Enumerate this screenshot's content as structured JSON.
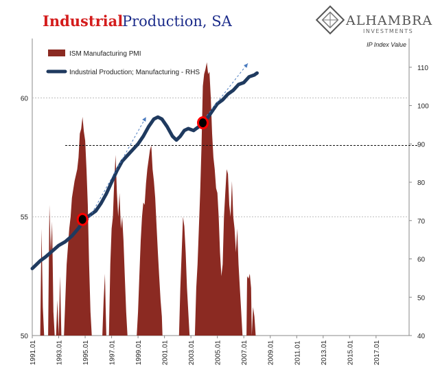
{
  "header": {
    "title_part1": "Industrial",
    "title_part2": "Production, SA",
    "logo_name": "ALHAMBRA",
    "logo_sub": "INVESTMENTS"
  },
  "chart_data": {
    "type": "area",
    "right_axis_note": "IP Index Value",
    "colors": {
      "pmi": "#8b2a22",
      "ip": "#1f3a5f",
      "marker": "#ff0000",
      "trend": "#4a7bbf",
      "grid": "#bbbbbb"
    },
    "left_axis": {
      "ylim": [
        50,
        62.5
      ],
      "ticks": [
        "50",
        "55",
        "60"
      ],
      "tick_values": [
        50,
        55,
        60
      ]
    },
    "right_axis": {
      "ylim": [
        40,
        117.5
      ],
      "ticks": [
        "40",
        "50",
        "60",
        "70",
        "80",
        "90",
        "100",
        "110"
      ],
      "tick_values": [
        40,
        50,
        60,
        70,
        80,
        90,
        100,
        110
      ]
    },
    "x_axis": {
      "xlim": [
        1991.0,
        2019.5
      ],
      "tick_labels": [
        "1991.01",
        "1993.01",
        "1995.01",
        "1997.01",
        "1999.01",
        "2001.01",
        "2003.01",
        "2005.01",
        "2007.01",
        "2009.01",
        "2011.01",
        "2013.01",
        "2015.01",
        "2017.01"
      ],
      "tick_values": [
        1991,
        1993,
        1995,
        1997,
        1999,
        2001,
        2003,
        2005,
        2007,
        2009,
        2011,
        2013,
        2015,
        2017
      ]
    },
    "series": [
      {
        "name": "ISM Manufacturing PMI",
        "kind": "area",
        "axis": "left",
        "points": [
          [
            1991.6,
            50.0
          ],
          [
            1991.7,
            54.5
          ],
          [
            1991.8,
            51.2
          ],
          [
            1991.9,
            50.0
          ],
          [
            1992.2,
            50.0
          ],
          [
            1992.3,
            55.5
          ],
          [
            1992.4,
            53.5
          ],
          [
            1992.5,
            54.8
          ],
          [
            1992.6,
            51.0
          ],
          [
            1992.7,
            50.0
          ],
          [
            1992.8,
            50.0
          ],
          [
            1992.9,
            51.5
          ],
          [
            1993.0,
            50.0
          ],
          [
            1993.1,
            52.5
          ],
          [
            1993.2,
            50.0
          ],
          [
            1993.4,
            50.0
          ],
          [
            1993.6,
            53.0
          ],
          [
            1993.8,
            54.5
          ],
          [
            1993.9,
            55.0
          ],
          [
            1994.0,
            55.8
          ],
          [
            1994.2,
            56.5
          ],
          [
            1994.4,
            57.0
          ],
          [
            1994.5,
            57.5
          ],
          [
            1994.6,
            58.5
          ],
          [
            1994.7,
            58.7
          ],
          [
            1994.8,
            59.2
          ],
          [
            1994.9,
            58.6
          ],
          [
            1995.0,
            58.2
          ],
          [
            1995.1,
            57.0
          ],
          [
            1995.2,
            55.5
          ],
          [
            1995.3,
            53.0
          ],
          [
            1995.4,
            51.0
          ],
          [
            1995.5,
            50.0
          ],
          [
            1996.3,
            50.0
          ],
          [
            1996.4,
            51.5
          ],
          [
            1996.5,
            52.6
          ],
          [
            1996.55,
            51.2
          ],
          [
            1996.6,
            50.0
          ],
          [
            1996.8,
            50.0
          ],
          [
            1996.9,
            53.0
          ],
          [
            1997.0,
            54.5
          ],
          [
            1997.1,
            55.0
          ],
          [
            1997.2,
            56.5
          ],
          [
            1997.3,
            57.6
          ],
          [
            1997.4,
            56.0
          ],
          [
            1997.5,
            55.0
          ],
          [
            1997.6,
            56.0
          ],
          [
            1997.7,
            54.5
          ],
          [
            1997.8,
            55.0
          ],
          [
            1997.9,
            54.0
          ],
          [
            1998.0,
            52.5
          ],
          [
            1998.1,
            51.0
          ],
          [
            1998.2,
            50.0
          ],
          [
            1998.9,
            50.0
          ],
          [
            1999.0,
            51.0
          ],
          [
            1999.1,
            52.5
          ],
          [
            1999.2,
            54.0
          ],
          [
            1999.3,
            55.0
          ],
          [
            1999.4,
            55.6
          ],
          [
            1999.5,
            55.5
          ],
          [
            1999.6,
            56.4
          ],
          [
            1999.7,
            57.0
          ],
          [
            1999.8,
            57.4
          ],
          [
            1999.9,
            57.8
          ],
          [
            2000.0,
            58.0
          ],
          [
            2000.1,
            57.0
          ],
          [
            2000.2,
            56.5
          ],
          [
            2000.3,
            55.8
          ],
          [
            2000.4,
            54.6
          ],
          [
            2000.5,
            53.5
          ],
          [
            2000.6,
            52.5
          ],
          [
            2000.7,
            51.5
          ],
          [
            2000.8,
            50.8
          ],
          [
            2000.85,
            50.0
          ],
          [
            2002.1,
            50.0
          ],
          [
            2002.2,
            52.0
          ],
          [
            2002.3,
            53.5
          ],
          [
            2002.4,
            55.0
          ],
          [
            2002.5,
            54.6
          ],
          [
            2002.6,
            53.5
          ],
          [
            2002.7,
            52.0
          ],
          [
            2002.8,
            51.0
          ],
          [
            2002.9,
            50.0
          ],
          [
            2003.3,
            50.0
          ],
          [
            2003.4,
            52.0
          ],
          [
            2003.5,
            53.0
          ],
          [
            2003.6,
            54.5
          ],
          [
            2003.7,
            56.0
          ],
          [
            2003.8,
            58.0
          ],
          [
            2003.9,
            60.5
          ],
          [
            2004.0,
            61.0
          ],
          [
            2004.1,
            61.2
          ],
          [
            2004.2,
            61.5
          ],
          [
            2004.3,
            61.0
          ],
          [
            2004.4,
            61.1
          ],
          [
            2004.5,
            60.0
          ],
          [
            2004.6,
            58.5
          ],
          [
            2004.7,
            57.5
          ],
          [
            2004.8,
            57.0
          ],
          [
            2004.9,
            56.2
          ],
          [
            2005.0,
            56.0
          ],
          [
            2005.1,
            55.0
          ],
          [
            2005.2,
            53.5
          ],
          [
            2005.3,
            52.5
          ],
          [
            2005.4,
            53.0
          ],
          [
            2005.5,
            55.0
          ],
          [
            2005.6,
            56.0
          ],
          [
            2005.7,
            57.0
          ],
          [
            2005.8,
            56.8
          ],
          [
            2005.9,
            55.5
          ],
          [
            2006.0,
            55.0
          ],
          [
            2006.1,
            56.5
          ],
          [
            2006.2,
            55.0
          ],
          [
            2006.3,
            54.5
          ],
          [
            2006.4,
            53.5
          ],
          [
            2006.5,
            54.5
          ],
          [
            2006.6,
            53.0
          ],
          [
            2006.7,
            52.0
          ],
          [
            2006.8,
            51.0
          ],
          [
            2006.9,
            50.0
          ],
          [
            2007.2,
            50.0
          ],
          [
            2007.25,
            52.5
          ],
          [
            2007.35,
            52.4
          ],
          [
            2007.45,
            52.6
          ],
          [
            2007.55,
            52.0
          ],
          [
            2007.6,
            50.0
          ],
          [
            2007.7,
            51.2
          ],
          [
            2007.8,
            50.8
          ],
          [
            2007.9,
            50.0
          ]
        ]
      },
      {
        "name": "Industrial Production; Manufacturing - RHS",
        "kind": "line",
        "axis": "right",
        "points": [
          [
            1991.0,
            57.5
          ],
          [
            1991.3,
            58.5
          ],
          [
            1991.6,
            59.5
          ],
          [
            1992.0,
            60.5
          ],
          [
            1992.5,
            62.0
          ],
          [
            1993.0,
            63.5
          ],
          [
            1993.5,
            64.5
          ],
          [
            1994.0,
            66.0
          ],
          [
            1994.5,
            68.0
          ],
          [
            1994.8,
            69.5
          ],
          [
            1995.0,
            70.5
          ],
          [
            1995.4,
            71.5
          ],
          [
            1995.8,
            72.5
          ],
          [
            1996.2,
            74.5
          ],
          [
            1996.6,
            77.0
          ],
          [
            1997.0,
            80.0
          ],
          [
            1997.4,
            83.0
          ],
          [
            1997.8,
            85.5
          ],
          [
            1998.2,
            87.0
          ],
          [
            1998.6,
            88.5
          ],
          [
            1999.0,
            90.0
          ],
          [
            1999.4,
            92.0
          ],
          [
            1999.8,
            94.5
          ],
          [
            2000.2,
            96.5
          ],
          [
            2000.5,
            97.0
          ],
          [
            2000.8,
            96.5
          ],
          [
            2001.2,
            94.5
          ],
          [
            2001.6,
            92.0
          ],
          [
            2001.9,
            91.0
          ],
          [
            2002.2,
            92.0
          ],
          [
            2002.5,
            93.5
          ],
          [
            2002.8,
            94.0
          ],
          [
            2003.2,
            93.5
          ],
          [
            2003.6,
            94.5
          ],
          [
            2003.9,
            95.5
          ],
          [
            2004.3,
            97.0
          ],
          [
            2004.7,
            99.0
          ],
          [
            2005.0,
            100.5
          ],
          [
            2005.4,
            101.5
          ],
          [
            2005.8,
            103.0
          ],
          [
            2006.2,
            104.0
          ],
          [
            2006.6,
            105.5
          ],
          [
            2007.0,
            106.0
          ],
          [
            2007.4,
            107.5
          ],
          [
            2007.8,
            108.0
          ],
          [
            2008.0,
            108.5
          ]
        ]
      }
    ],
    "reference_line": {
      "axis": "left",
      "value": 58.0
    },
    "trend_arrows": [
      {
        "from": [
          1995.2,
          70.0
        ],
        "to": [
          1999.6,
          97.0
        ]
      },
      {
        "from": [
          2004.0,
          96.5
        ],
        "to": [
          2007.3,
          111.0
        ]
      }
    ],
    "markers": [
      {
        "x": 1994.8,
        "y_right": 70.3
      },
      {
        "x": 2003.9,
        "y_right": 95.5
      }
    ],
    "legend": "top-left"
  }
}
